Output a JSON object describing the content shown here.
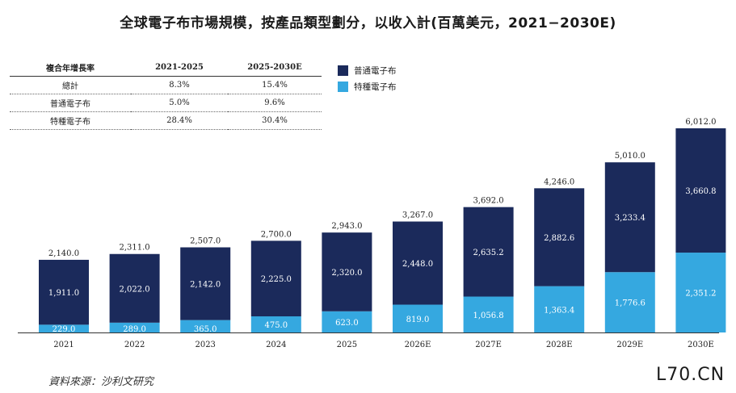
{
  "title": "全球電子布市場規模，按產品類型劃分，以收入計(百萬美元，2021−2030E)",
  "cagr_table": {
    "headers": [
      "複合年增長率",
      "2021-2025",
      "2025-2030E"
    ],
    "rows": [
      [
        "總計",
        "8.3%",
        "15.4%"
      ],
      [
        "普通電子布",
        "5.0%",
        "9.6%"
      ],
      [
        "特種電子布",
        "28.4%",
        "30.4%"
      ]
    ]
  },
  "source": "資料來源：沙利文研究",
  "watermark": "L70.CN",
  "colors": {
    "ordinary": "#1b2a5b",
    "special": "#35a8e0"
  },
  "chart_data": {
    "type": "bar",
    "stacked": true,
    "categories": [
      "2021",
      "2022",
      "2023",
      "2024",
      "2025",
      "2026E",
      "2027E",
      "2028E",
      "2029E",
      "2030E"
    ],
    "series": [
      {
        "name": "特種電子布",
        "values": [
          229.0,
          289.0,
          365.0,
          475.0,
          623.0,
          819.0,
          1056.8,
          1363.4,
          1776.6,
          2351.2
        ],
        "labels": [
          "229.0",
          "289.0",
          "365.0",
          "475.0",
          "623.0",
          "819.0",
          "1,056.8",
          "1,363.4",
          "1,776.6",
          "2,351.2"
        ]
      },
      {
        "name": "普通電子布",
        "values": [
          1911.0,
          2022.0,
          2142.0,
          2225.0,
          2320.0,
          2448.0,
          2635.2,
          2882.6,
          3233.4,
          3660.8
        ],
        "labels": [
          "1,911.0",
          "2,022.0",
          "2,142.0",
          "2,225.0",
          "2,320.0",
          "2,448.0",
          "2,635.2",
          "2,882.6",
          "3,233.4",
          "3,660.8"
        ]
      }
    ],
    "totals": [
      2140.0,
      2311.0,
      2507.0,
      2700.0,
      2943.0,
      3267.0,
      3692.0,
      4246.0,
      5010.0,
      6012.0
    ],
    "total_labels": [
      "2,140.0",
      "2,311.0",
      "2,507.0",
      "2,700.0",
      "2,943.0",
      "3,267.0",
      "3,692.0",
      "4,246.0",
      "5,010.0",
      "6,012.0"
    ],
    "legend_position": "top-center",
    "grid": false
  }
}
